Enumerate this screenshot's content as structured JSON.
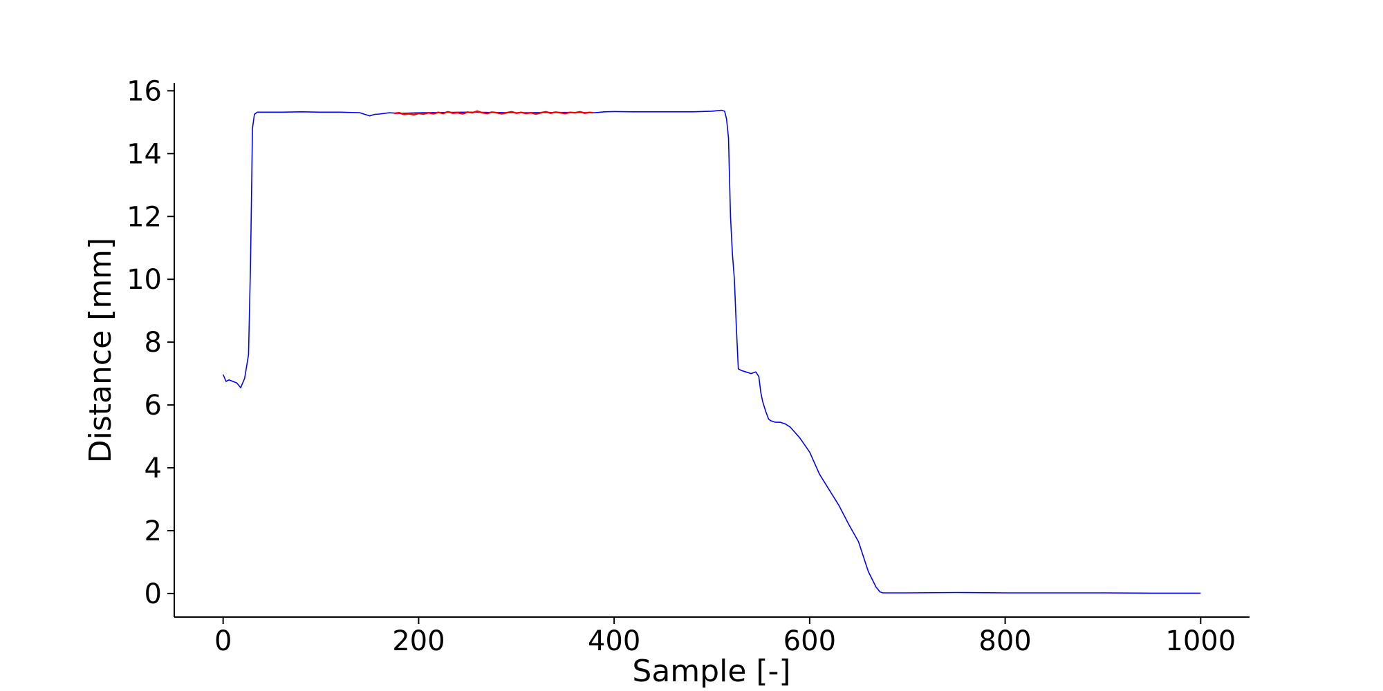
{
  "chart_data": {
    "type": "line",
    "title": "",
    "xlabel": "Sample [-]",
    "ylabel": "Distance [mm]",
    "xlim": [
      -50,
      1050
    ],
    "ylim": [
      -0.75,
      16.25
    ],
    "xticks": [
      0,
      200,
      400,
      600,
      800,
      1000
    ],
    "yticks": [
      0,
      2,
      4,
      6,
      8,
      10,
      12,
      14,
      16
    ],
    "grid": false,
    "series": [
      {
        "color": "#0000ff",
        "x": [
          0,
          3,
          6,
          10,
          14,
          18,
          22,
          26,
          28,
          30,
          32,
          35,
          40,
          60,
          80,
          100,
          120,
          140,
          150,
          155,
          160,
          170,
          180,
          200,
          250,
          300,
          350,
          380,
          390,
          400,
          420,
          450,
          480,
          500,
          510,
          513,
          515,
          517,
          519,
          521,
          523,
          525,
          527,
          530,
          535,
          540,
          545,
          548,
          550,
          552,
          555,
          558,
          560,
          565,
          570,
          575,
          580,
          590,
          600,
          610,
          620,
          630,
          640,
          650,
          660,
          668,
          672,
          675,
          680,
          700,
          750,
          800,
          850,
          900,
          950,
          1000
        ],
        "y": [
          6.97,
          6.75,
          6.8,
          6.75,
          6.7,
          6.55,
          6.85,
          7.6,
          10.5,
          14.8,
          15.25,
          15.32,
          15.32,
          15.32,
          15.33,
          15.32,
          15.32,
          15.3,
          15.2,
          15.25,
          15.26,
          15.3,
          15.28,
          15.3,
          15.32,
          15.3,
          15.31,
          15.3,
          15.33,
          15.34,
          15.33,
          15.33,
          15.33,
          15.35,
          15.38,
          15.35,
          15.1,
          14.5,
          12.0,
          10.8,
          10.0,
          8.5,
          7.15,
          7.1,
          7.05,
          7.0,
          7.05,
          6.9,
          6.4,
          6.1,
          5.8,
          5.55,
          5.5,
          5.45,
          5.45,
          5.4,
          5.3,
          4.95,
          4.5,
          3.8,
          3.3,
          2.8,
          2.2,
          1.65,
          0.7,
          0.2,
          0.05,
          0.02,
          0.02,
          0.02,
          0.03,
          0.02,
          0.02,
          0.02,
          0.01,
          0.01
        ]
      },
      {
        "color": "#ff0000",
        "x": [
          175,
          180,
          185,
          190,
          195,
          200,
          205,
          210,
          215,
          220,
          225,
          230,
          235,
          240,
          245,
          250,
          255,
          260,
          265,
          270,
          275,
          280,
          285,
          290,
          295,
          300,
          305,
          310,
          315,
          320,
          325,
          330,
          335,
          340,
          345,
          350,
          355,
          360,
          365,
          370,
          375,
          378
        ],
        "y": [
          15.28,
          15.3,
          15.25,
          15.27,
          15.24,
          15.28,
          15.26,
          15.3,
          15.27,
          15.31,
          15.28,
          15.33,
          15.29,
          15.3,
          15.27,
          15.32,
          15.3,
          15.35,
          15.3,
          15.28,
          15.32,
          15.3,
          15.27,
          15.3,
          15.33,
          15.29,
          15.31,
          15.28,
          15.3,
          15.26,
          15.3,
          15.33,
          15.29,
          15.32,
          15.3,
          15.28,
          15.31,
          15.3,
          15.33,
          15.29,
          15.31,
          15.3
        ]
      }
    ]
  }
}
